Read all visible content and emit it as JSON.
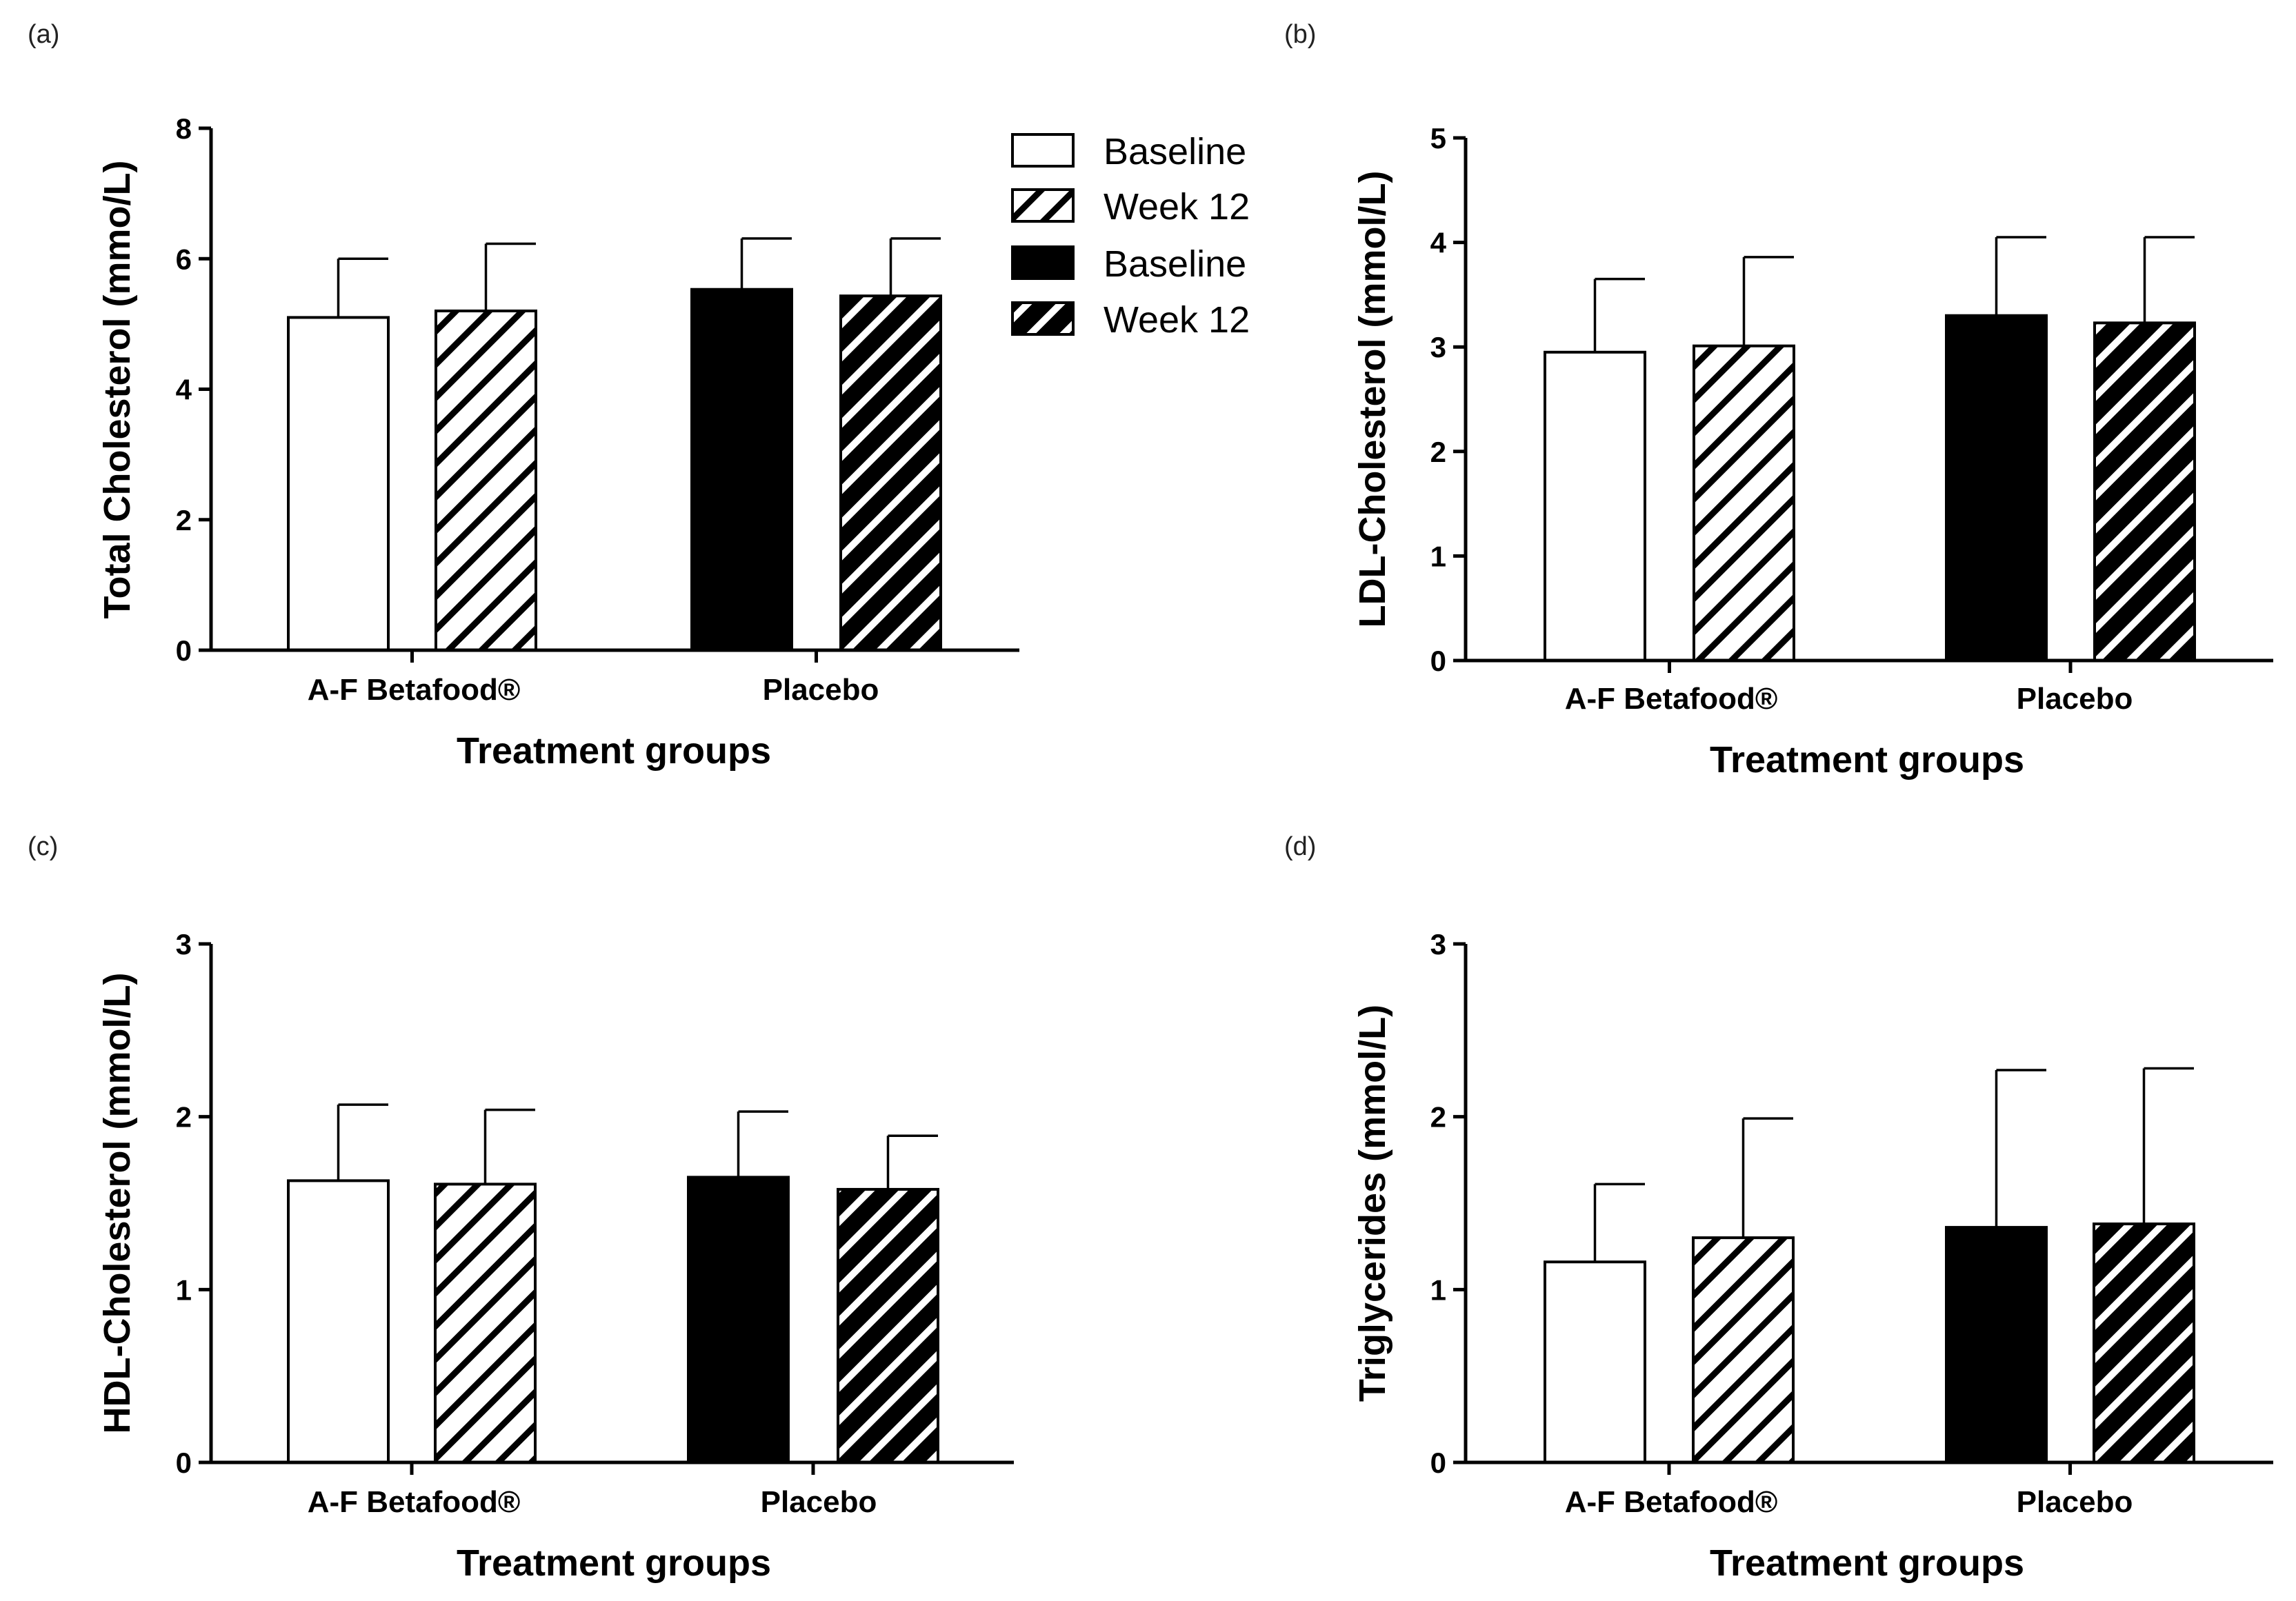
{
  "chart_data": [
    {
      "panel": "(a)",
      "type": "bar",
      "categories": [
        "A-F Betafood®",
        "Placebo"
      ],
      "xlabel": "Treatment groups",
      "ylabel": "Total Cholesterol (mmo/L)",
      "ylim": [
        0,
        8
      ],
      "yticks": [
        0,
        2,
        4,
        6,
        8
      ],
      "grid": false,
      "legend": {
        "placement": "top-right",
        "entries": [
          "Baseline",
          "Week 12",
          "Baseline",
          "Week 12"
        ]
      },
      "bars": [
        {
          "category": "A-F Betafood®",
          "label": "Baseline",
          "style": "white",
          "value": 5.1,
          "error": 0.9
        },
        {
          "category": "A-F Betafood®",
          "label": "Week 12",
          "style": "hatch-white",
          "value": 5.2,
          "error": 1.03
        },
        {
          "category": "Placebo",
          "label": "Baseline",
          "style": "black",
          "value": 5.53,
          "error": 0.78
        },
        {
          "category": "Placebo",
          "label": "Week 12",
          "style": "hatch-black",
          "value": 5.43,
          "error": 0.88
        }
      ]
    },
    {
      "panel": "(b)",
      "type": "bar",
      "categories": [
        "A-F Betafood®",
        "Placebo"
      ],
      "xlabel": "Treatment groups",
      "ylabel": "LDL-Cholesterol (mmol/L)",
      "ylim": [
        0,
        5
      ],
      "yticks": [
        0,
        1,
        2,
        3,
        4,
        5
      ],
      "grid": false,
      "bars": [
        {
          "category": "A-F Betafood®",
          "label": "Baseline",
          "style": "white",
          "value": 2.95,
          "error": 0.7
        },
        {
          "category": "A-F Betafood®",
          "label": "Week 12",
          "style": "hatch-white",
          "value": 3.01,
          "error": 0.85
        },
        {
          "category": "Placebo",
          "label": "Baseline",
          "style": "black",
          "value": 3.3,
          "error": 0.75
        },
        {
          "category": "Placebo",
          "label": "Week 12",
          "style": "hatch-black",
          "value": 3.23,
          "error": 0.82
        }
      ]
    },
    {
      "panel": "(c)",
      "type": "bar",
      "categories": [
        "A-F Betafood®",
        "Placebo"
      ],
      "xlabel": "Treatment groups",
      "ylabel": "HDL-Cholesterol (mmol/L)",
      "ylim": [
        0,
        3
      ],
      "yticks": [
        0,
        1,
        2,
        3
      ],
      "grid": false,
      "bars": [
        {
          "category": "A-F Betafood®",
          "label": "Baseline",
          "style": "white",
          "value": 1.63,
          "error": 0.44
        },
        {
          "category": "A-F Betafood®",
          "label": "Week 12",
          "style": "hatch-white",
          "value": 1.61,
          "error": 0.43
        },
        {
          "category": "Placebo",
          "label": "Baseline",
          "style": "black",
          "value": 1.65,
          "error": 0.38
        },
        {
          "category": "Placebo",
          "label": "Week 12",
          "style": "hatch-black",
          "value": 1.58,
          "error": 0.31
        }
      ]
    },
    {
      "panel": "(d)",
      "type": "bar",
      "categories": [
        "A-F Betafood®",
        "Placebo"
      ],
      "xlabel": "Treatment groups",
      "ylabel": "Triglycerides (mmol/L)",
      "ylim": [
        0,
        3
      ],
      "yticks": [
        0,
        1,
        2,
        3
      ],
      "grid": false,
      "bars": [
        {
          "category": "A-F Betafood®",
          "label": "Baseline",
          "style": "white",
          "value": 1.16,
          "error": 0.45
        },
        {
          "category": "A-F Betafood®",
          "label": "Week 12",
          "style": "hatch-white",
          "value": 1.3,
          "error": 0.69
        },
        {
          "category": "Placebo",
          "label": "Baseline",
          "style": "black",
          "value": 1.36,
          "error": 0.91
        },
        {
          "category": "Placebo",
          "label": "Week 12",
          "style": "hatch-black",
          "value": 1.38,
          "error": 0.9
        }
      ]
    }
  ]
}
